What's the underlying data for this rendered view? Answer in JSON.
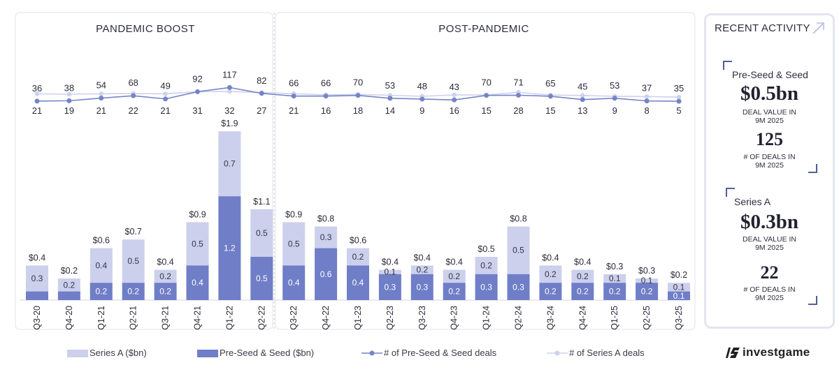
{
  "colors": {
    "series_a": "#ccd0ec",
    "seed": "#6f7ec7",
    "seed_line": "#7584c8",
    "series_a_line": "#cdd2ec",
    "border": "#e3e3ea"
  },
  "panels": {
    "left_title": "PANDEMIC BOOST",
    "right_title": "POST-PANDEMIC"
  },
  "chart_data": {
    "type": "bar",
    "stacked": true,
    "categories": [
      "Q3-20",
      "Q4-20",
      "Q1-21",
      "Q2-21",
      "Q3-21",
      "Q4-21",
      "Q1-22",
      "Q2-22",
      "Q3-22",
      "Q4-22",
      "Q1-23",
      "Q2-23",
      "Q3-23",
      "Q4-23",
      "Q1-24",
      "Q2-24",
      "Q3-24",
      "Q4-24",
      "Q1-25",
      "Q2-25",
      "Q3-25"
    ],
    "series": [
      {
        "name": "Pre-Seed & Seed ($bn)",
        "values": [
          0.1,
          0.1,
          0.2,
          0.2,
          0.2,
          0.4,
          1.2,
          0.5,
          0.4,
          0.6,
          0.4,
          0.3,
          0.3,
          0.2,
          0.3,
          0.3,
          0.2,
          0.2,
          0.2,
          0.2,
          0.1
        ],
        "labels": [
          "",
          "",
          "0.2",
          "0.2",
          "0.2",
          "0.4",
          "1.2",
          "0.5",
          "0.4",
          "0.6",
          "0.4",
          "0.3",
          "0.3",
          "0.2",
          "0.3",
          "0.3",
          "0.2",
          "0.2",
          "0.2",
          "0.2",
          "0.1"
        ]
      },
      {
        "name": "Series A ($bn)",
        "values": [
          0.3,
          0.2,
          0.4,
          0.5,
          0.2,
          0.5,
          0.7,
          0.5,
          0.5,
          0.3,
          0.2,
          0.1,
          0.2,
          0.2,
          0.2,
          0.5,
          0.2,
          0.2,
          0.1,
          0.1,
          0.1
        ],
        "labels": [
          "0.3",
          "0.2",
          "0.4",
          "0.5",
          "0.2",
          "0.5",
          "0.7",
          "0.5",
          "0.5",
          "0.3",
          "0.2",
          "0.1",
          "0.2",
          "0.2",
          "0.2",
          "0.5",
          "0.2",
          "0.2",
          "0.1",
          "0.1",
          "0.1"
        ]
      }
    ],
    "totals": [
      "$0.4",
      "$0.2",
      "$0.6",
      "$0.7",
      "$0.4",
      "$0.9",
      "$1.9",
      "$1.1",
      "$0.9",
      "$0.8",
      "$0.6",
      "$0.4",
      "$0.4",
      "$0.4",
      "$0.5",
      "$0.8",
      "$0.4",
      "$0.4",
      "$0.3",
      "$0.3",
      "$0.2"
    ],
    "bar_total_values": [
      0.4,
      0.25,
      0.6,
      0.7,
      0.35,
      0.9,
      1.95,
      1.05,
      0.9,
      0.85,
      0.6,
      0.35,
      0.4,
      0.35,
      0.5,
      0.85,
      0.4,
      0.35,
      0.3,
      0.25,
      0.2
    ],
    "lines": [
      {
        "name": "# of Pre-Seed & Seed deals",
        "values": [
          36,
          38,
          54,
          68,
          49,
          92,
          117,
          82,
          66,
          66,
          70,
          53,
          48,
          43,
          70,
          71,
          65,
          45,
          53,
          37,
          35
        ]
      },
      {
        "name": "# of Series A deals",
        "values": [
          21,
          19,
          21,
          22,
          21,
          31,
          32,
          27,
          21,
          16,
          18,
          14,
          9,
          16,
          15,
          28,
          15,
          13,
          9,
          8,
          5
        ]
      }
    ],
    "ylim": [
      0,
      2.0
    ]
  },
  "legend": {
    "series_a": "Series A ($bn)",
    "seed": "Pre-Seed & Seed ($bn)",
    "seed_deals": "# of Pre-Seed & Seed deals",
    "series_a_deals": "# of Series A deals"
  },
  "sidebar": {
    "title": "RECENT ACTIVITY",
    "arrow_icon": "arrow-up-right-icon",
    "seed": {
      "label": "Pre-Seed & Seed",
      "value": "$0.5bn",
      "value_caption_1": "DEAL VALUE IN",
      "value_caption_2": "9M 2025",
      "deals": "125",
      "deals_caption_1": "# OF DEALS IN",
      "deals_caption_2": "9M 2025"
    },
    "series_a": {
      "label": "Series A",
      "value": "$0.3bn",
      "value_caption_1": "DEAL VALUE IN",
      "value_caption_2": "9M 2025",
      "deals": "22",
      "deals_caption_1": "# OF DEALS IN",
      "deals_caption_2": "9M 2025"
    }
  },
  "brand": {
    "name": "investgame",
    "icon": "investgame-logo-icon"
  }
}
